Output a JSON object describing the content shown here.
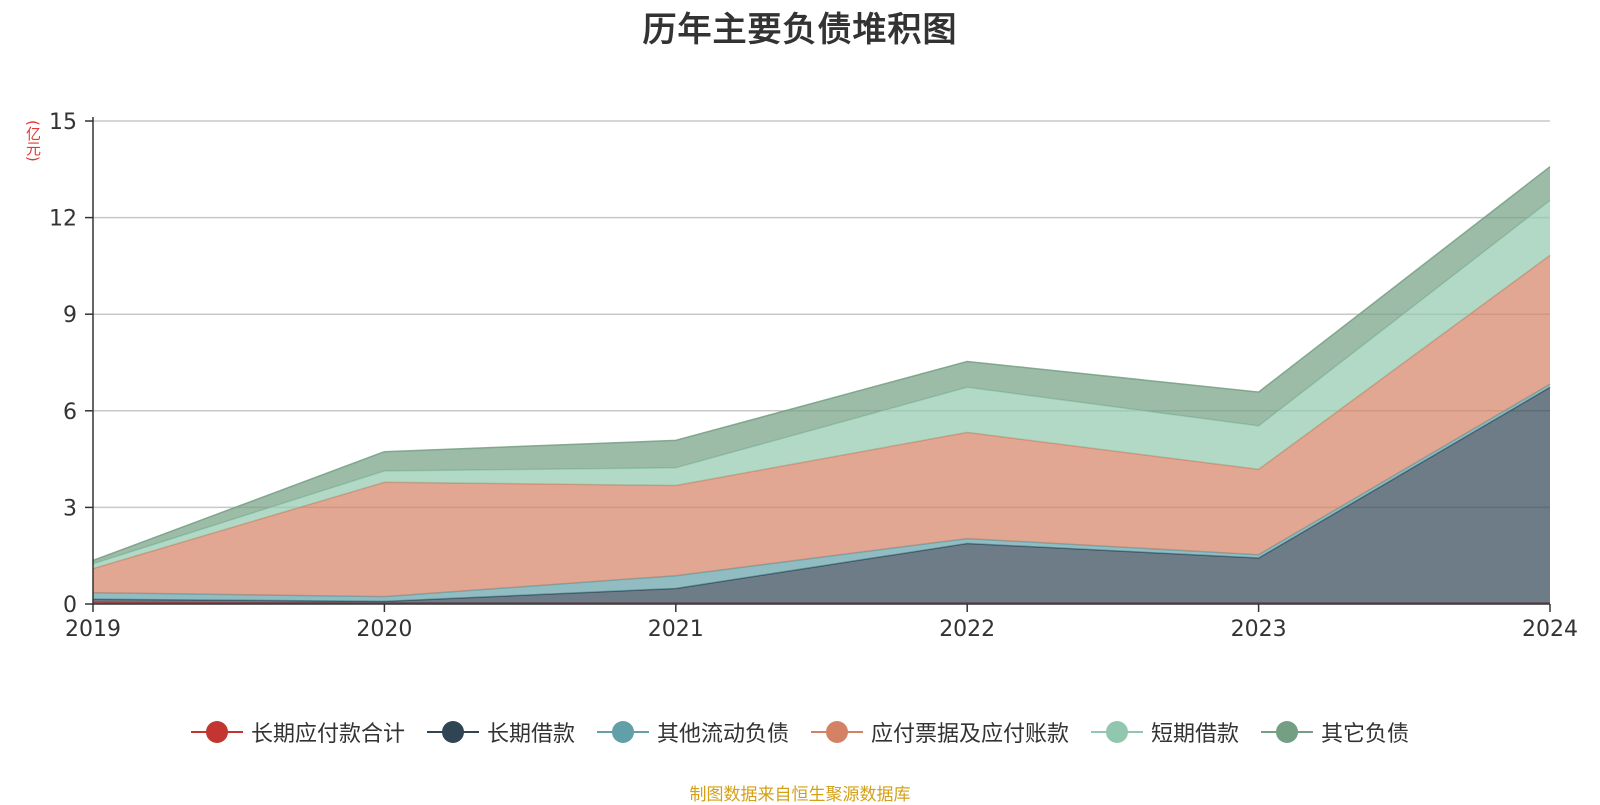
{
  "chart_data": {
    "type": "area",
    "stacked": true,
    "title": "历年主要负债堆积图",
    "unit": "(亿元)",
    "x": [
      "2019",
      "2020",
      "2021",
      "2022",
      "2023",
      "2024"
    ],
    "ylim": [
      0,
      15
    ],
    "yticks": [
      "0",
      "3",
      "6",
      "9",
      "12",
      "15"
    ],
    "grid": true,
    "legend_position": "bottom",
    "series": [
      {
        "name": "长期应付款合计",
        "color": "#c23531",
        "values": [
          0.05,
          0.03,
          0.03,
          0.03,
          0.03,
          0.03
        ]
      },
      {
        "name": "长期借款",
        "color": "#2f4554",
        "values": [
          0.1,
          0.05,
          0.45,
          1.85,
          1.4,
          6.7
        ]
      },
      {
        "name": "其他流动负债",
        "color": "#61a0a8",
        "values": [
          0.2,
          0.15,
          0.4,
          0.15,
          0.1,
          0.1
        ]
      },
      {
        "name": "应付票据及应付账款",
        "color": "#d48265",
        "values": [
          0.75,
          3.55,
          2.8,
          3.3,
          2.65,
          4.0
        ]
      },
      {
        "name": "短期借款",
        "color": "#91c7ae",
        "values": [
          0.15,
          0.35,
          0.55,
          1.4,
          1.35,
          1.7
        ]
      },
      {
        "name": "其它负债",
        "color": "#749f83",
        "values": [
          0.1,
          0.6,
          0.85,
          0.8,
          1.05,
          1.05
        ]
      }
    ]
  },
  "footer": {
    "source": "制图数据来自恒生聚源数据库"
  }
}
